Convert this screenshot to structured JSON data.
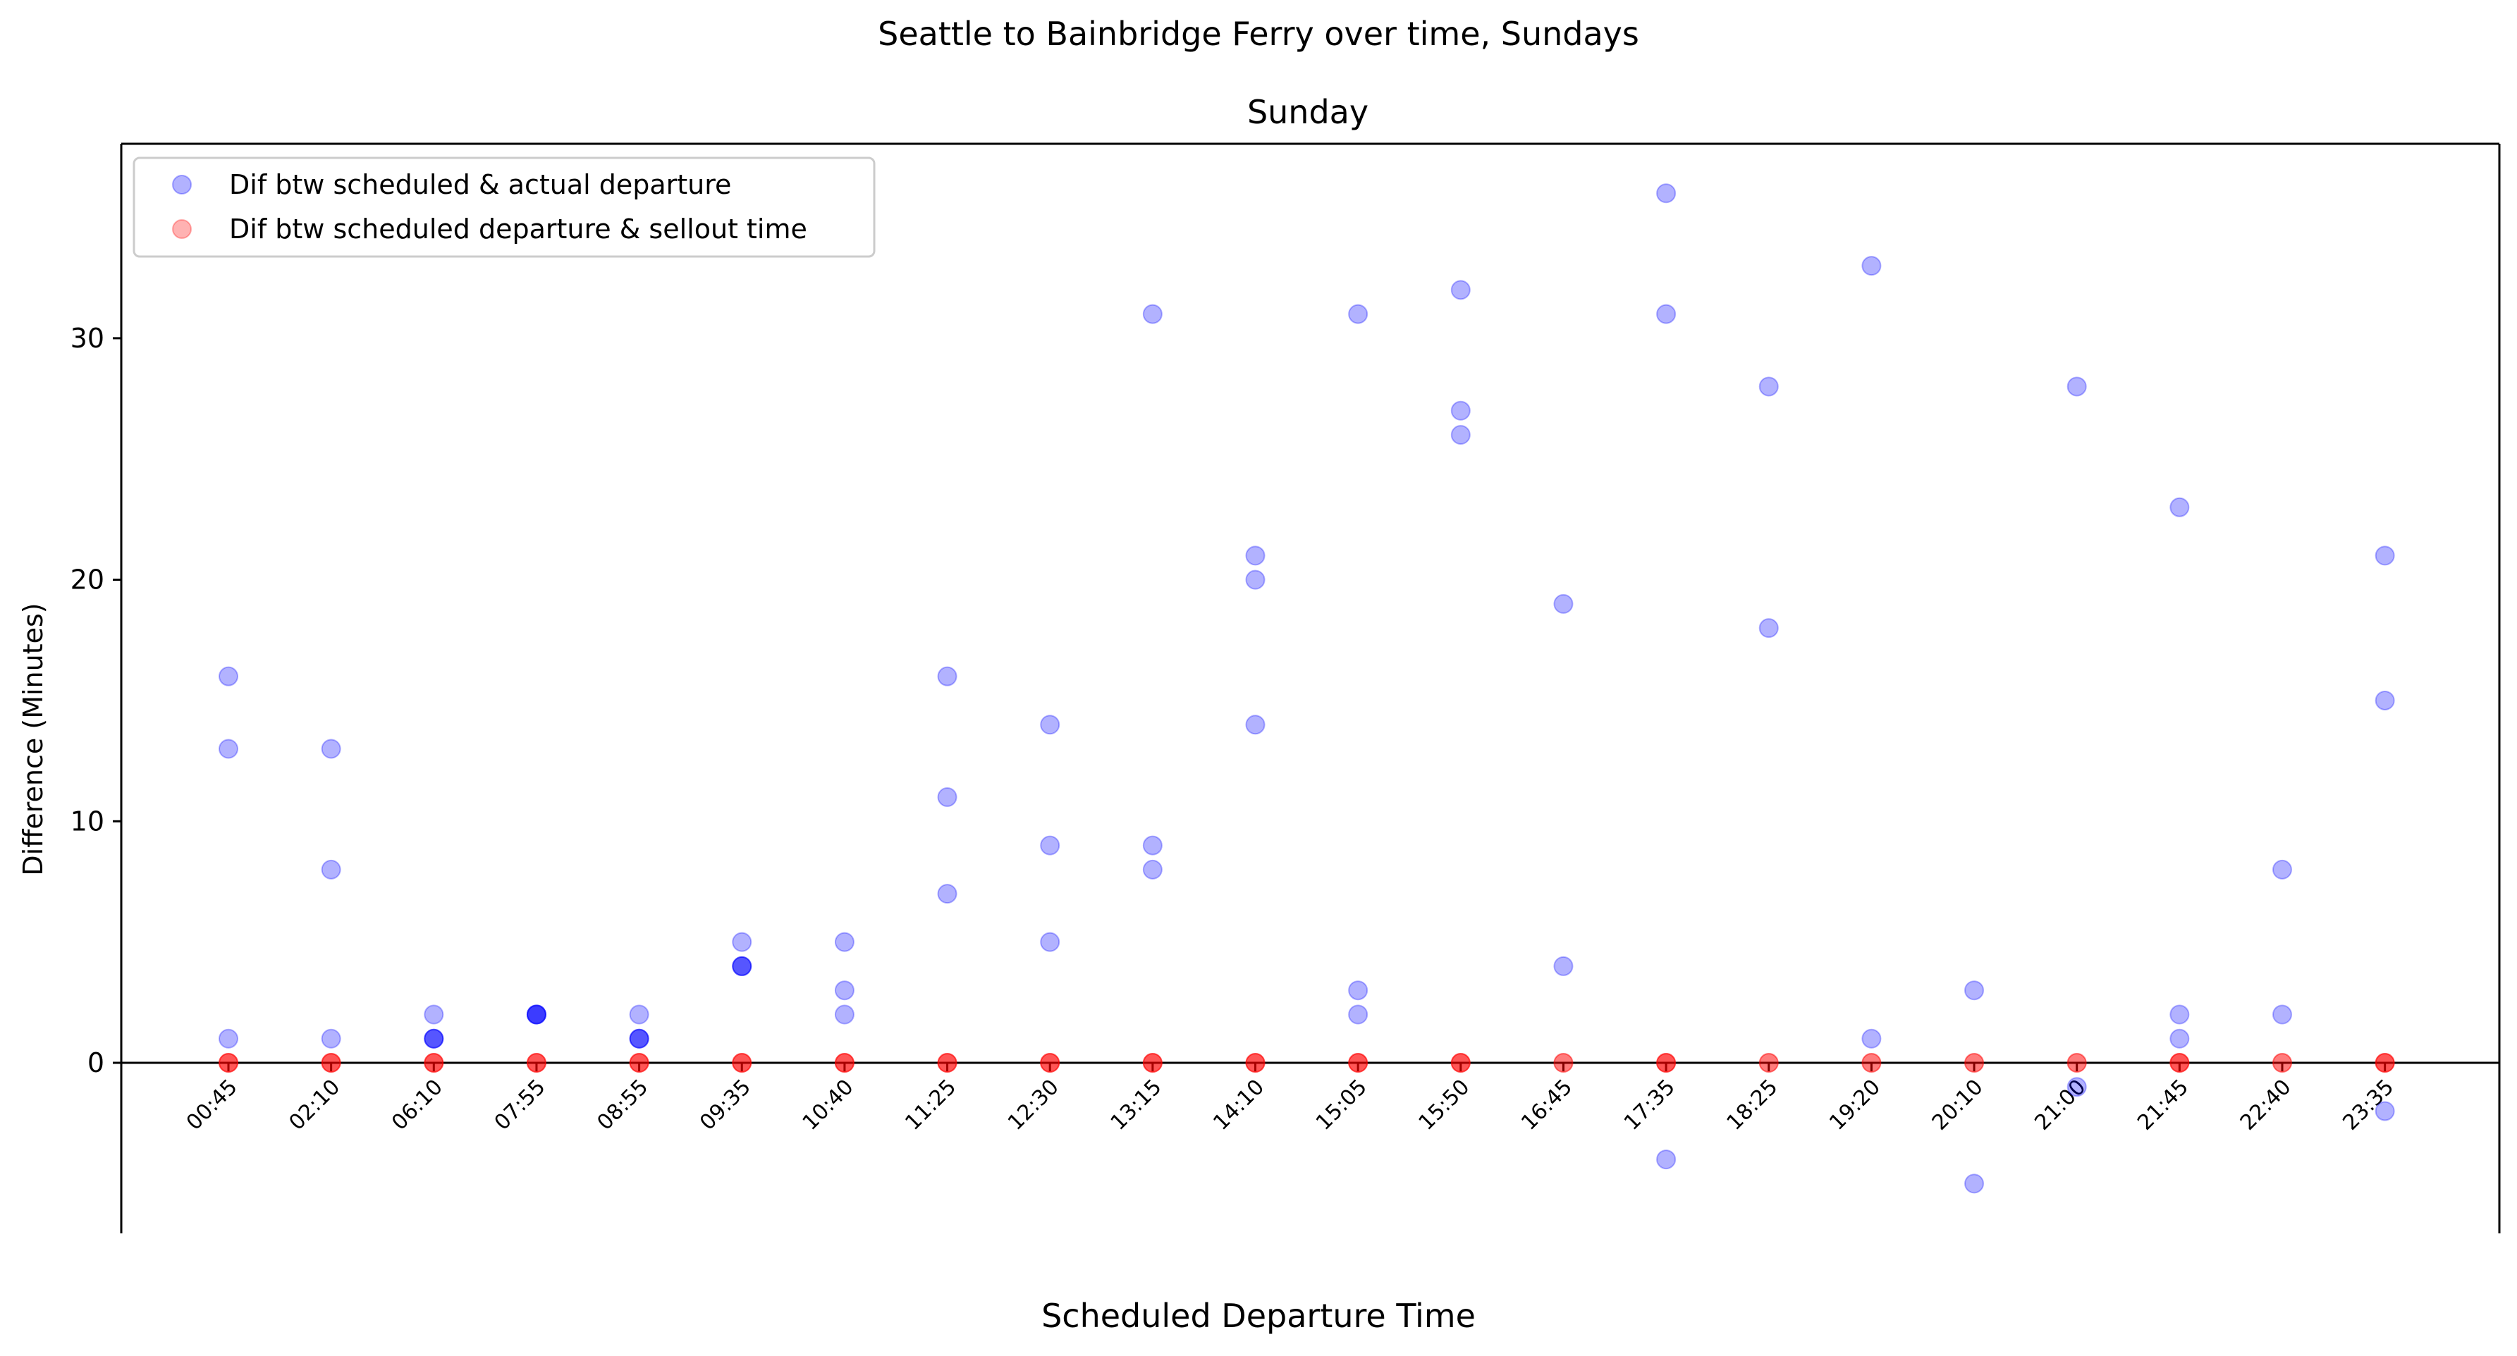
{
  "suptitle": "Seattle to Bainbridge Ferry over time, Sundays",
  "chart_data": {
    "type": "scatter",
    "title": "Sunday",
    "xlabel": "Scheduled Departure Time",
    "ylabel": "Difference (Minutes)",
    "ylim": [
      -7,
      38
    ],
    "yticks": [
      0,
      10,
      20,
      30
    ],
    "grid": false,
    "legend_position": "top-left",
    "categories": [
      "00:45",
      "02:10",
      "06:10",
      "07:55",
      "08:55",
      "09:35",
      "10:40",
      "11:25",
      "12:30",
      "13:15",
      "14:10",
      "15:05",
      "15:50",
      "16:45",
      "17:35",
      "18:25",
      "19:20",
      "20:10",
      "21:00",
      "21:45",
      "22:40",
      "23:35"
    ],
    "series": [
      {
        "name": "Dif btw scheduled & actual departure",
        "color": "#0000ff",
        "alpha": 0.3,
        "points": [
          [
            "00:45",
            16
          ],
          [
            "00:45",
            13
          ],
          [
            "00:45",
            1
          ],
          [
            "02:10",
            13
          ],
          [
            "02:10",
            8
          ],
          [
            "02:10",
            1
          ],
          [
            "06:10",
            2
          ],
          [
            "06:10",
            1
          ],
          [
            "06:10",
            1
          ],
          [
            "06:10",
            1
          ],
          [
            "07:55",
            2
          ],
          [
            "07:55",
            2
          ],
          [
            "07:55",
            2
          ],
          [
            "07:55",
            2
          ],
          [
            "08:55",
            2
          ],
          [
            "08:55",
            1
          ],
          [
            "08:55",
            1
          ],
          [
            "08:55",
            1
          ],
          [
            "09:35",
            5
          ],
          [
            "09:35",
            4
          ],
          [
            "09:35",
            4
          ],
          [
            "09:35",
            4
          ],
          [
            "10:40",
            5
          ],
          [
            "10:40",
            3
          ],
          [
            "10:40",
            2
          ],
          [
            "11:25",
            16
          ],
          [
            "11:25",
            11
          ],
          [
            "11:25",
            7
          ],
          [
            "12:30",
            14
          ],
          [
            "12:30",
            9
          ],
          [
            "12:30",
            5
          ],
          [
            "13:15",
            31
          ],
          [
            "13:15",
            9
          ],
          [
            "13:15",
            8
          ],
          [
            "14:10",
            21
          ],
          [
            "14:10",
            20
          ],
          [
            "14:10",
            14
          ],
          [
            "15:05",
            31
          ],
          [
            "15:05",
            3
          ],
          [
            "15:05",
            2
          ],
          [
            "15:50",
            32
          ],
          [
            "15:50",
            27
          ],
          [
            "15:50",
            26
          ],
          [
            "16:45",
            19
          ],
          [
            "16:45",
            4
          ],
          [
            "17:35",
            36
          ],
          [
            "17:35",
            31
          ],
          [
            "17:35",
            -4
          ],
          [
            "18:25",
            28
          ],
          [
            "18:25",
            18
          ],
          [
            "19:20",
            33
          ],
          [
            "19:20",
            1
          ],
          [
            "20:10",
            3
          ],
          [
            "20:10",
            -5
          ],
          [
            "21:00",
            28
          ],
          [
            "21:00",
            -1
          ],
          [
            "21:45",
            23
          ],
          [
            "21:45",
            2
          ],
          [
            "21:45",
            1
          ],
          [
            "22:40",
            8
          ],
          [
            "22:40",
            2
          ],
          [
            "23:35",
            21
          ],
          [
            "23:35",
            15
          ],
          [
            "23:35",
            -2
          ]
        ]
      },
      {
        "name": "Dif btw scheduled departure & sellout time",
        "color": "#ff0000",
        "alpha": 0.3,
        "points": [
          [
            "00:45",
            0
          ],
          [
            "00:45",
            0
          ],
          [
            "00:45",
            0
          ],
          [
            "02:10",
            0
          ],
          [
            "02:10",
            0
          ],
          [
            "02:10",
            0
          ],
          [
            "06:10",
            0
          ],
          [
            "06:10",
            0
          ],
          [
            "06:10",
            0
          ],
          [
            "07:55",
            0
          ],
          [
            "07:55",
            0
          ],
          [
            "07:55",
            0
          ],
          [
            "08:55",
            0
          ],
          [
            "08:55",
            0
          ],
          [
            "08:55",
            0
          ],
          [
            "09:35",
            0
          ],
          [
            "09:35",
            0
          ],
          [
            "09:35",
            0
          ],
          [
            "10:40",
            0
          ],
          [
            "10:40",
            0
          ],
          [
            "10:40",
            0
          ],
          [
            "11:25",
            0
          ],
          [
            "11:25",
            0
          ],
          [
            "11:25",
            0
          ],
          [
            "12:30",
            0
          ],
          [
            "12:30",
            0
          ],
          [
            "12:30",
            0
          ],
          [
            "13:15",
            0
          ],
          [
            "13:15",
            0
          ],
          [
            "13:15",
            0
          ],
          [
            "14:10",
            0
          ],
          [
            "14:10",
            0
          ],
          [
            "14:10",
            0
          ],
          [
            "15:05",
            0
          ],
          [
            "15:05",
            0
          ],
          [
            "15:05",
            0
          ],
          [
            "15:50",
            0
          ],
          [
            "15:50",
            0
          ],
          [
            "15:50",
            0
          ],
          [
            "16:45",
            0
          ],
          [
            "16:45",
            0
          ],
          [
            "17:35",
            0
          ],
          [
            "17:35",
            0
          ],
          [
            "17:35",
            0
          ],
          [
            "18:25",
            0
          ],
          [
            "18:25",
            0
          ],
          [
            "19:20",
            0
          ],
          [
            "19:20",
            0
          ],
          [
            "20:10",
            0
          ],
          [
            "20:10",
            0
          ],
          [
            "21:00",
            0
          ],
          [
            "21:00",
            0
          ],
          [
            "21:45",
            0
          ],
          [
            "21:45",
            0
          ],
          [
            "21:45",
            0
          ],
          [
            "22:40",
            0
          ],
          [
            "22:40",
            0
          ],
          [
            "23:35",
            0
          ],
          [
            "23:35",
            0
          ],
          [
            "23:35",
            0
          ]
        ]
      }
    ]
  }
}
